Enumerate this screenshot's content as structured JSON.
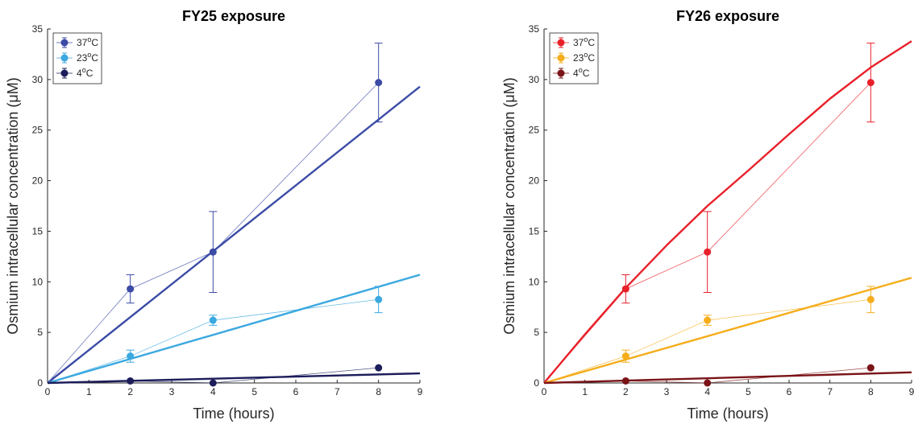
{
  "chart_data": [
    {
      "type": "line",
      "title": "FY25 exposure",
      "xlabel": "Time (hours)",
      "ylabel": "Osmium intracellular concentration (μM)",
      "xlim": [
        0,
        9
      ],
      "ylim": [
        0,
        35
      ],
      "xticks": [
        0,
        1,
        2,
        3,
        4,
        5,
        6,
        7,
        8,
        9
      ],
      "yticks": [
        0,
        5,
        10,
        15,
        20,
        25,
        30,
        35
      ],
      "grid": false,
      "legend_position": "top-left",
      "series": [
        {
          "name": "37°C",
          "label_base": "37",
          "label_sup": "o",
          "label_tail": "C",
          "color": "#3b4ba6",
          "x": [
            0,
            2,
            4,
            8
          ],
          "y": [
            0,
            9.3,
            12.95,
            29.7
          ],
          "err": [
            0,
            1.4,
            4.0,
            3.9
          ],
          "fit": {
            "x": [
              0,
              9
            ],
            "y": [
              0,
              29.3
            ]
          }
        },
        {
          "name": "23°C",
          "label_base": "23",
          "label_sup": "o",
          "label_tail": "C",
          "color": "#3ba8e0",
          "x": [
            0,
            2,
            4,
            8
          ],
          "y": [
            0,
            2.65,
            6.2,
            8.25
          ],
          "err": [
            0,
            0.6,
            0.5,
            1.3
          ],
          "fit": {
            "x": [
              0,
              9
            ],
            "y": [
              0,
              10.7
            ]
          }
        },
        {
          "name": "4°C",
          "label_base": "4",
          "label_sup": "o",
          "label_tail": "C",
          "color": "#1c1d5a",
          "x": [
            0,
            2,
            4,
            8
          ],
          "y": [
            0,
            0.2,
            0.0,
            1.5
          ],
          "err": [
            0,
            0.1,
            0.1,
            0.15
          ],
          "fit": {
            "x": [
              0,
              9
            ],
            "y": [
              0,
              0.95
            ]
          }
        }
      ]
    },
    {
      "type": "line",
      "title": "FY26 exposure",
      "xlabel": "Time (hours)",
      "ylabel": "Osmium intracellular concentration (μM)",
      "xlim": [
        0,
        9
      ],
      "ylim": [
        0,
        35
      ],
      "xticks": [
        0,
        1,
        2,
        3,
        4,
        5,
        6,
        7,
        8,
        9
      ],
      "yticks": [
        0,
        5,
        10,
        15,
        20,
        25,
        30,
        35
      ],
      "grid": false,
      "legend_position": "top-left",
      "series": [
        {
          "name": "37°C",
          "label_base": "37",
          "label_sup": "o",
          "label_tail": "C",
          "color": "#e8202a",
          "x": [
            0,
            2,
            4,
            8
          ],
          "y": [
            0,
            9.3,
            12.95,
            29.7
          ],
          "err": [
            0,
            1.4,
            4.0,
            3.9
          ],
          "fit": {
            "x": [
              0,
              1,
              2,
              3,
              4,
              5,
              6,
              7,
              8,
              9
            ],
            "y": [
              0,
              4.8,
              9.4,
              13.6,
              17.5,
              21.0,
              24.6,
              28.1,
              31.2,
              33.8
            ]
          }
        },
        {
          "name": "23°C",
          "label_base": "23",
          "label_sup": "o",
          "label_tail": "C",
          "color": "#f5ad1b",
          "x": [
            0,
            2,
            4,
            8
          ],
          "y": [
            0,
            2.65,
            6.2,
            8.25
          ],
          "err": [
            0,
            0.6,
            0.5,
            1.3
          ],
          "fit": {
            "x": [
              0,
              9
            ],
            "y": [
              0,
              10.4
            ]
          }
        },
        {
          "name": "4°C",
          "label_base": "4",
          "label_sup": "o",
          "label_tail": "C",
          "color": "#7a1418",
          "x": [
            0,
            2,
            4,
            8
          ],
          "y": [
            0,
            0.2,
            0.0,
            1.5
          ],
          "err": [
            0,
            0.1,
            0.1,
            0.15
          ],
          "fit": {
            "x": [
              0,
              9
            ],
            "y": [
              0,
              1.05
            ]
          }
        }
      ]
    }
  ]
}
